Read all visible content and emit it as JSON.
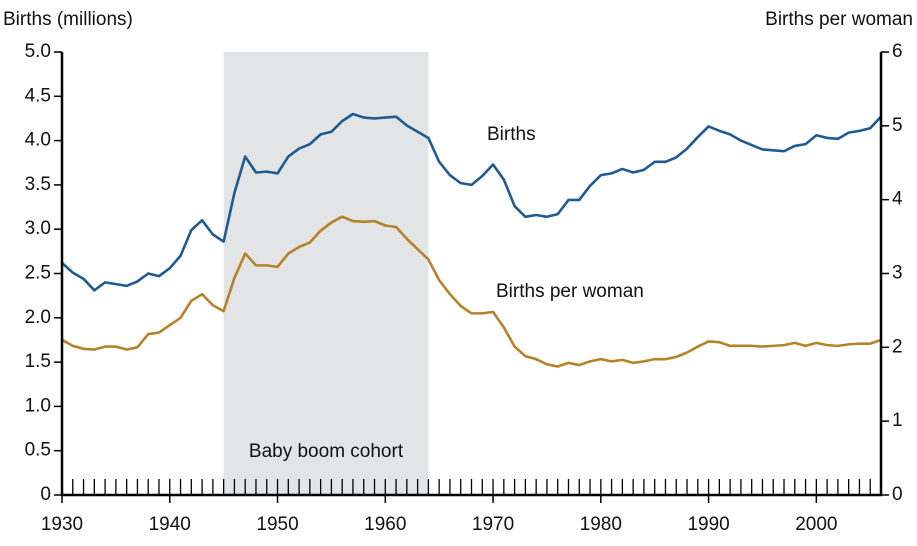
{
  "chart_data": {
    "type": "line",
    "y_label": "Births (millions)",
    "y2_label": "Births per woman",
    "x": [
      1930,
      1931,
      1932,
      1933,
      1934,
      1935,
      1936,
      1937,
      1938,
      1939,
      1940,
      1941,
      1942,
      1943,
      1944,
      1945,
      1946,
      1947,
      1948,
      1949,
      1950,
      1951,
      1952,
      1953,
      1954,
      1955,
      1956,
      1957,
      1958,
      1959,
      1960,
      1961,
      1962,
      1963,
      1964,
      1965,
      1966,
      1967,
      1968,
      1969,
      1970,
      1971,
      1972,
      1973,
      1974,
      1975,
      1976,
      1977,
      1978,
      1979,
      1980,
      1981,
      1982,
      1983,
      1984,
      1985,
      1986,
      1987,
      1988,
      1989,
      1990,
      1991,
      1992,
      1993,
      1994,
      1995,
      1996,
      1997,
      1998,
      1999,
      2000,
      2001,
      2002,
      2003,
      2004,
      2005,
      2006
    ],
    "series": [
      {
        "name": "Births",
        "color": "#1f5b93",
        "axis": "y",
        "values": [
          2.62,
          2.51,
          2.44,
          2.31,
          2.4,
          2.38,
          2.36,
          2.41,
          2.5,
          2.47,
          2.56,
          2.7,
          2.99,
          3.1,
          2.94,
          2.86,
          3.41,
          3.82,
          3.64,
          3.65,
          3.63,
          3.82,
          3.91,
          3.96,
          4.07,
          4.1,
          4.22,
          4.3,
          4.26,
          4.25,
          4.26,
          4.27,
          4.17,
          4.1,
          4.03,
          3.76,
          3.61,
          3.52,
          3.5,
          3.6,
          3.73,
          3.56,
          3.26,
          3.14,
          3.16,
          3.14,
          3.17,
          3.33,
          3.33,
          3.49,
          3.61,
          3.63,
          3.68,
          3.64,
          3.67,
          3.76,
          3.76,
          3.81,
          3.91,
          4.04,
          4.16,
          4.11,
          4.07,
          4.0,
          3.95,
          3.9,
          3.89,
          3.88,
          3.94,
          3.96,
          4.06,
          4.03,
          4.02,
          4.09,
          4.11,
          4.14,
          4.27
        ]
      },
      {
        "name": "Births per woman",
        "color": "#b5822a",
        "axis": "y2",
        "values": [
          2.1,
          2.02,
          1.98,
          1.97,
          2.01,
          2.01,
          1.97,
          2.0,
          2.18,
          2.2,
          2.3,
          2.4,
          2.63,
          2.72,
          2.57,
          2.49,
          2.94,
          3.27,
          3.11,
          3.11,
          3.09,
          3.27,
          3.36,
          3.42,
          3.58,
          3.69,
          3.77,
          3.71,
          3.7,
          3.71,
          3.65,
          3.63,
          3.47,
          3.33,
          3.19,
          2.91,
          2.72,
          2.56,
          2.46,
          2.46,
          2.48,
          2.27,
          2.01,
          1.88,
          1.84,
          1.77,
          1.74,
          1.79,
          1.76,
          1.81,
          1.84,
          1.81,
          1.83,
          1.79,
          1.81,
          1.84,
          1.84,
          1.87,
          1.93,
          2.01,
          2.08,
          2.07,
          2.02,
          2.02,
          2.02,
          2.01,
          2.02,
          2.03,
          2.06,
          2.02,
          2.06,
          2.03,
          2.02,
          2.04,
          2.05,
          2.05,
          2.1
        ]
      }
    ],
    "xlim": [
      1930,
      2006
    ],
    "xticks": [
      1930,
      1940,
      1950,
      1960,
      1970,
      1980,
      1990,
      2000
    ],
    "ylim": [
      0,
      5
    ],
    "yticks": [
      0,
      0.5,
      {
        "value": 1,
        "label": "1.0"
      },
      1.5,
      {
        "value": 2,
        "label": "2.0"
      },
      2.5,
      {
        "value": 3,
        "label": "3.0"
      },
      3.5,
      {
        "value": 4,
        "label": "4.0"
      },
      4.5,
      {
        "value": 5,
        "label": "5.0"
      }
    ],
    "y2lim": [
      0,
      6
    ],
    "y2ticks": [
      0,
      1,
      2,
      3,
      4,
      5,
      6
    ],
    "highlight": {
      "from": 1945,
      "to": 1964,
      "label": "Baby boom cohort",
      "color": "#e3e4e6"
    }
  }
}
